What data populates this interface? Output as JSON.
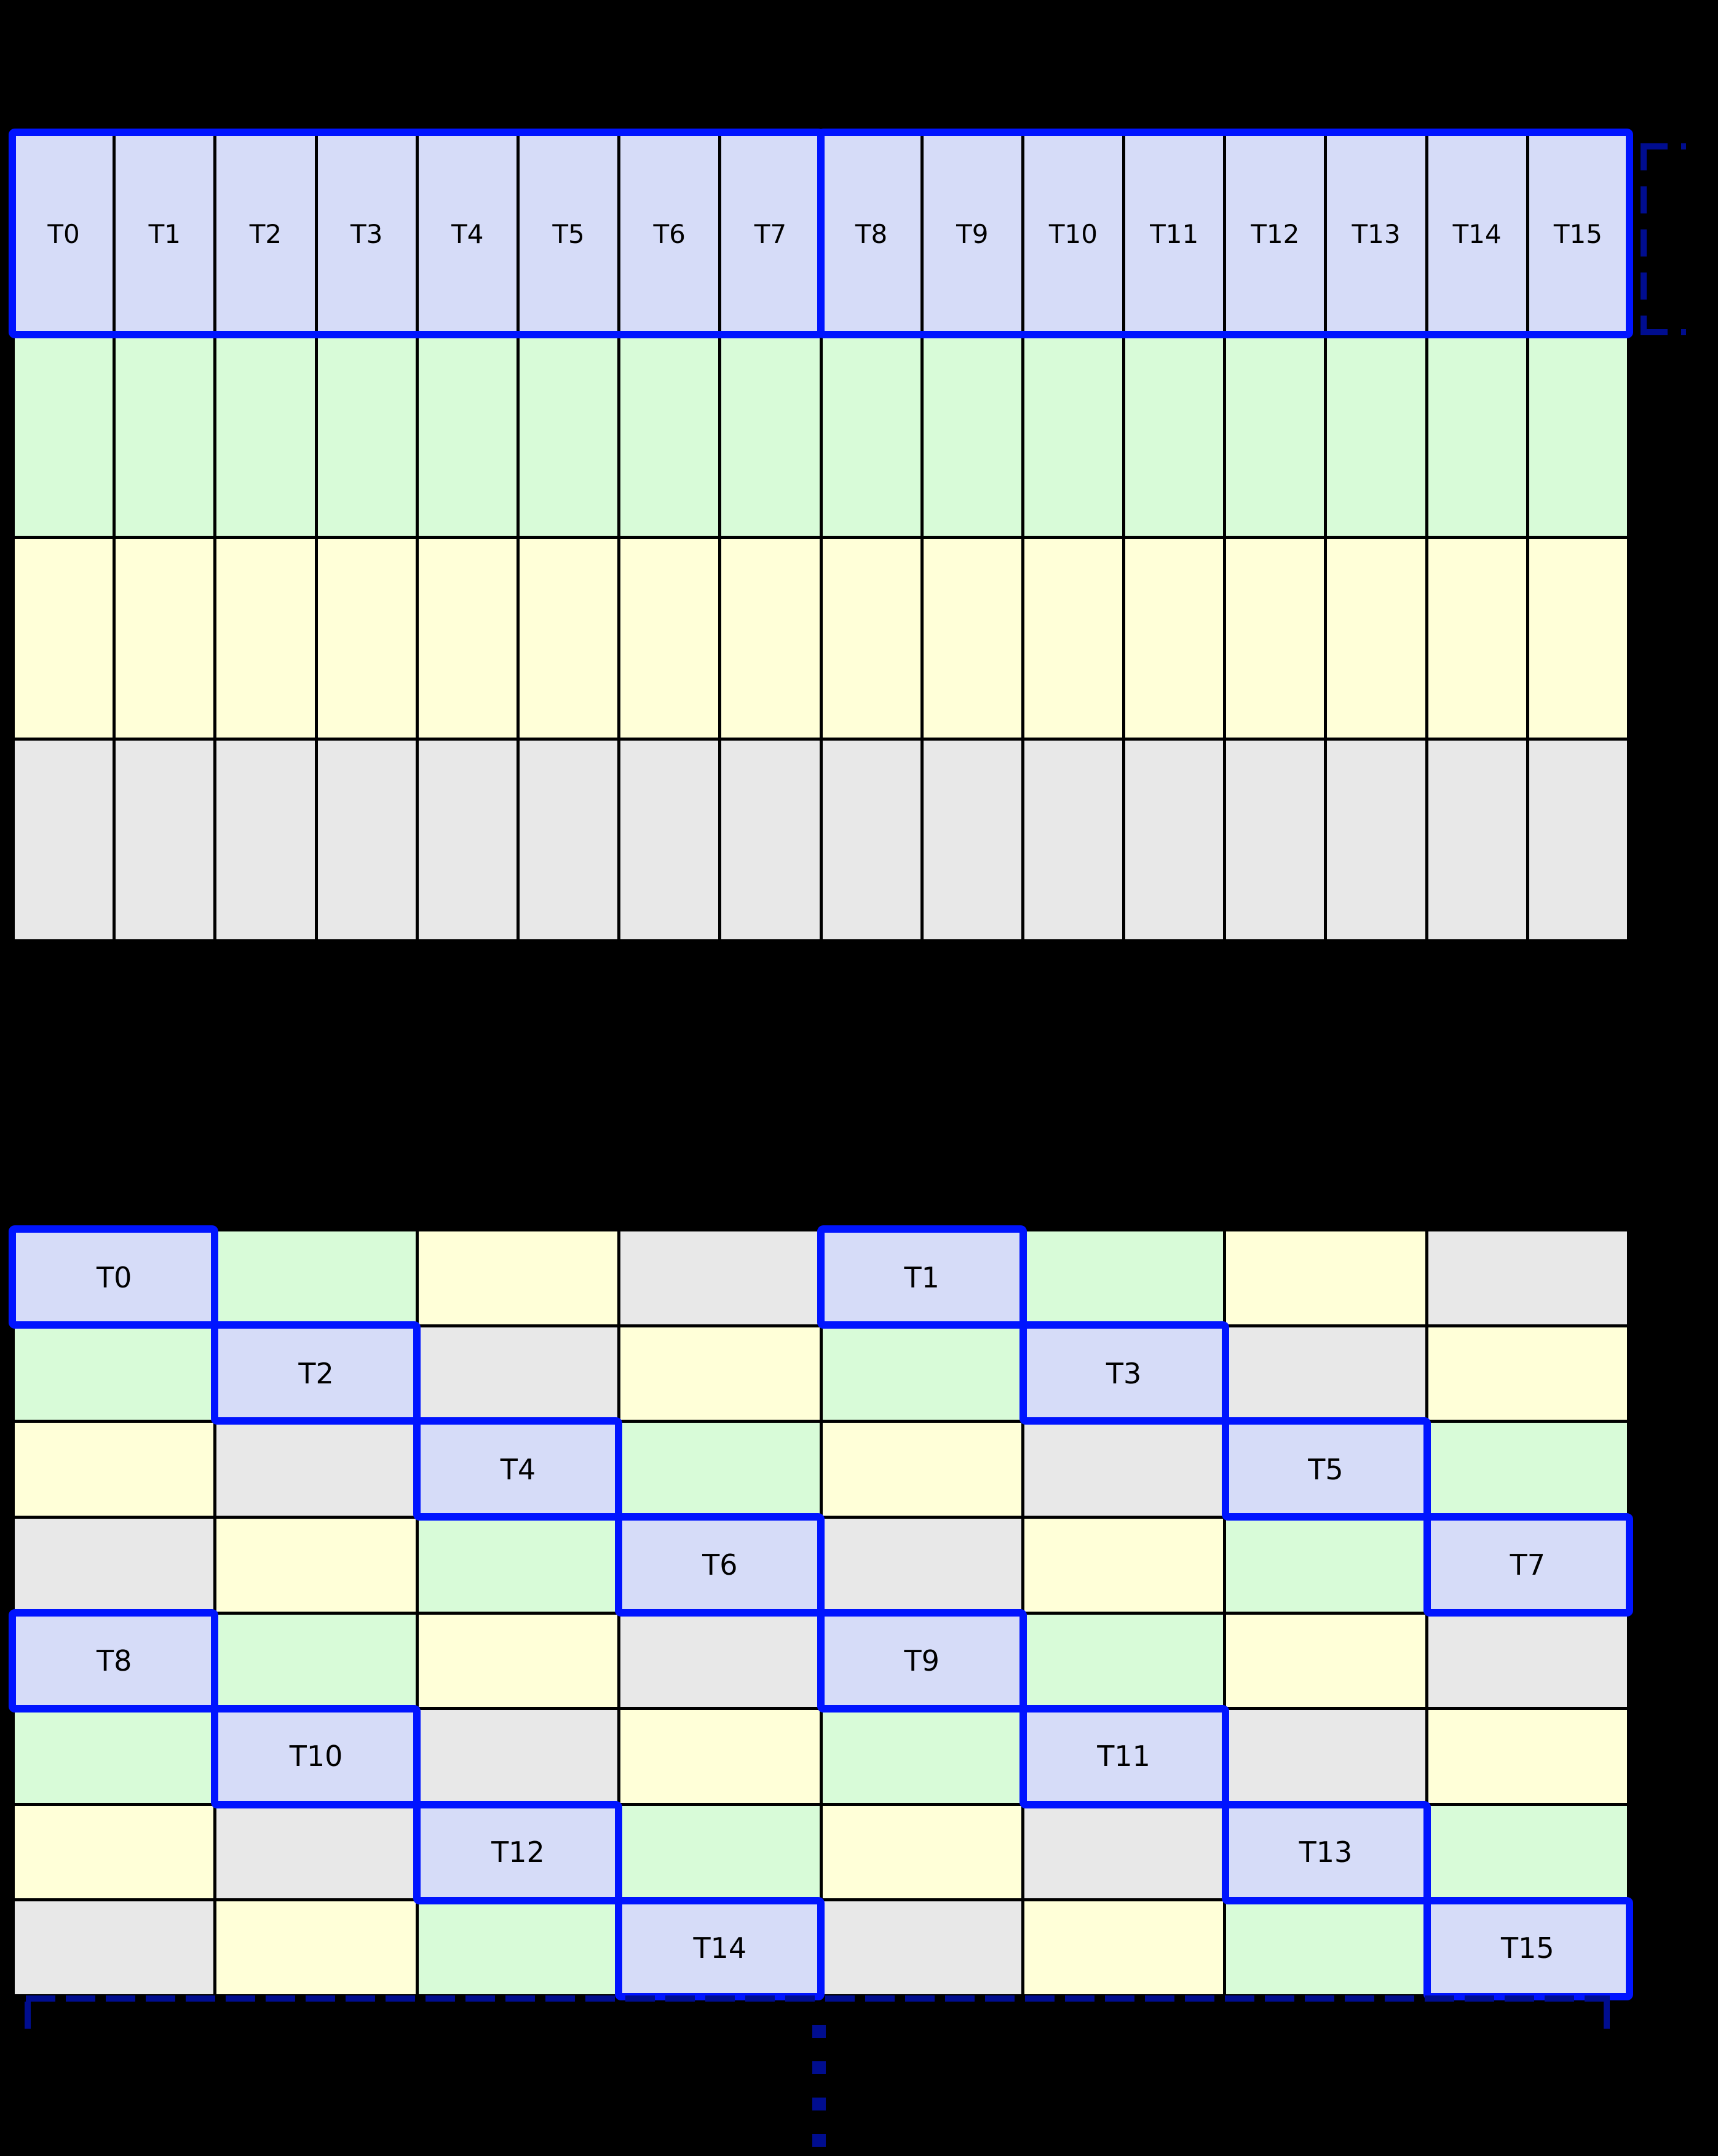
{
  "palette": {
    "background": "#000000",
    "thread_fill": "#d6dcf8",
    "green_fill": "#d8fbd8",
    "yellow_fill": "#ffffd8",
    "gray_fill": "#e8e8e8",
    "highlight_blue": "#0014ff",
    "bracket_navy": "#000d8f",
    "grid_line": "#000000",
    "label_color": "#000000"
  },
  "top_grid": {
    "cols": 16,
    "rows": 4,
    "thread_labels": [
      "T0",
      "T1",
      "T2",
      "T3",
      "T4",
      "T5",
      "T6",
      "T7",
      "T8",
      "T9",
      "T10",
      "T11",
      "T12",
      "T13",
      "T14",
      "T15"
    ],
    "row_fills": [
      "thread",
      "green",
      "yellow",
      "gray"
    ],
    "group_split_after_col": 8
  },
  "bottom_grid": {
    "cols": 8,
    "rows": [
      [
        "T0",
        "g",
        "y",
        "x",
        "T1",
        "g",
        "y",
        "x"
      ],
      [
        "g",
        "T2",
        "x",
        "y",
        "g",
        "T3",
        "x",
        "y"
      ],
      [
        "y",
        "x",
        "T4",
        "g",
        "y",
        "x",
        "T5",
        "g"
      ],
      [
        "x",
        "y",
        "g",
        "T6",
        "x",
        "y",
        "g",
        "T7"
      ],
      [
        "T8",
        "g",
        "y",
        "x",
        "T9",
        "g",
        "y",
        "x"
      ],
      [
        "g",
        "T10",
        "x",
        "y",
        "g",
        "T11",
        "x",
        "y"
      ],
      [
        "y",
        "x",
        "T12",
        "g",
        "y",
        "x",
        "T13",
        "g"
      ],
      [
        "x",
        "y",
        "g",
        "T14",
        "x",
        "y",
        "g",
        "T15"
      ]
    ]
  },
  "annotations": {
    "top_row_bracket": "dashed-bracket-right-of-thread-row",
    "bottom_bracket": "dashed-bracket-below-grid",
    "continuation_ellipsis": "vertical-dots-continuation"
  }
}
